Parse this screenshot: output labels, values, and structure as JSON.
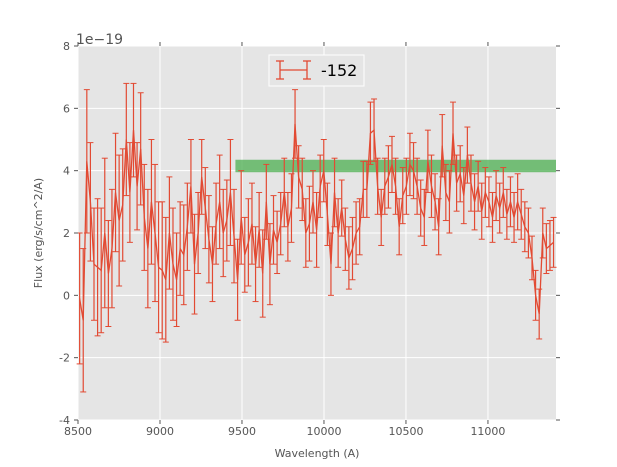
{
  "chart_data": {
    "type": "line",
    "subtype": "errorbar",
    "title": "",
    "xlabel": "Wavelength (A)",
    "ylabel": "Flux (erg/s/cm^2/A)",
    "offset_text": "1e−19",
    "xlim": [
      8500,
      11415
    ],
    "ylim": [
      -4,
      8
    ],
    "xticks": [
      8500,
      9000,
      9500,
      10000,
      10500,
      11000
    ],
    "yticks": [
      -4,
      -2,
      0,
      2,
      4,
      6,
      8
    ],
    "grid": true,
    "legend": {
      "position": "top-center",
      "entries": [
        "-152"
      ]
    },
    "series": [
      {
        "name": "-152",
        "color": "#E24A33",
        "x_range": [
          8510,
          11400
        ],
        "y": [
          -0.1,
          -0.8,
          4.3,
          3.0,
          1.0,
          0.9,
          0.8,
          2.0,
          0.7,
          1.5,
          3.3,
          2.4,
          2.9,
          5.0,
          3.3,
          5.3,
          3.5,
          4.7,
          2.5,
          1.5,
          3.0,
          2.0,
          0.9,
          0.8,
          0.5,
          2.0,
          1.0,
          0.5,
          1.5,
          1.3,
          2.2,
          3.5,
          1.0,
          2.0,
          3.8,
          2.8,
          1.8,
          1.0,
          2.3,
          3.0,
          2.0,
          2.4,
          3.3,
          1.9,
          0.5,
          2.5,
          1.3,
          1.7,
          2.3,
          1.0,
          2.1,
          0.7,
          3.0,
          1.0,
          2.1,
          1.7,
          2.3,
          3.3,
          2.2,
          2.8,
          5.5,
          3.8,
          3.4,
          2.0,
          2.3,
          3.0,
          2.1,
          3.5,
          4.0,
          2.6,
          1.0,
          3.3,
          2.0,
          2.8,
          1.8,
          1.2,
          1.5,
          2.0,
          2.2,
          3.4,
          3.4,
          5.2,
          5.3,
          3.5,
          2.5,
          3.5,
          3.8,
          4.2,
          3.5,
          2.2,
          3.2,
          3.5,
          4.2,
          4.0,
          3.5,
          2.8,
          2.5,
          4.3,
          3.5,
          3.0,
          2.2,
          4.8,
          3.3,
          3.0,
          5.2,
          3.6,
          3.9,
          3.2,
          4.5,
          3.6,
          3.0,
          3.5,
          2.7,
          3.3,
          3.0,
          2.5,
          3.2,
          2.8,
          3.3,
          2.6,
          3.0,
          2.5,
          3.0,
          2.6,
          2.2,
          2.0,
          1.2,
          0.0,
          -0.6,
          2.0,
          1.5,
          1.6,
          1.7
        ],
        "yerr": [
          2.1,
          2.3,
          2.3,
          1.9,
          1.8,
          2.2,
          2.0,
          2.4,
          1.7,
          1.9,
          1.9,
          2.1,
          1.8,
          1.8,
          1.6,
          1.5,
          1.4,
          1.8,
          1.7,
          1.9,
          2.0,
          2.2,
          2.1,
          2.2,
          2.0,
          1.8,
          1.8,
          1.5,
          1.5,
          1.6,
          1.4,
          1.5,
          1.6,
          1.3,
          1.2,
          1.3,
          1.4,
          1.2,
          1.3,
          1.5,
          1.4,
          1.3,
          1.7,
          1.5,
          1.3,
          1.5,
          1.2,
          1.4,
          1.3,
          1.2,
          1.2,
          1.4,
          1.2,
          1.3,
          1.1,
          1.0,
          1.0,
          1.1,
          1.1,
          1.1,
          1.1,
          1.0,
          1.0,
          1.1,
          1.2,
          1.0,
          1.2,
          1.0,
          1.0,
          1.0,
          1.0,
          1.1,
          1.1,
          0.9,
          1.0,
          1.0,
          1.0,
          1.0,
          0.9,
          0.9,
          0.9,
          1.0,
          1.0,
          0.9,
          0.9,
          0.9,
          1.0,
          0.9,
          0.9,
          0.9,
          0.9,
          0.9,
          1.0,
          0.9,
          0.9,
          0.9,
          0.9,
          1.0,
          1.0,
          0.9,
          0.9,
          1.0,
          0.9,
          1.0,
          1.0,
          0.9,
          0.9,
          0.9,
          0.9,
          0.9,
          0.9,
          0.8,
          0.9,
          0.8,
          0.8,
          0.8,
          0.8,
          0.8,
          0.8,
          0.8,
          0.8,
          0.8,
          0.9,
          0.8,
          0.8,
          0.8,
          0.7,
          0.8,
          0.8,
          0.8,
          0.8,
          0.8,
          0.8
        ]
      }
    ],
    "band": {
      "color": "#348ABD",
      "fill": "#4CAF50",
      "x_start": 9460,
      "y_range": [
        3.95,
        4.35
      ]
    }
  }
}
